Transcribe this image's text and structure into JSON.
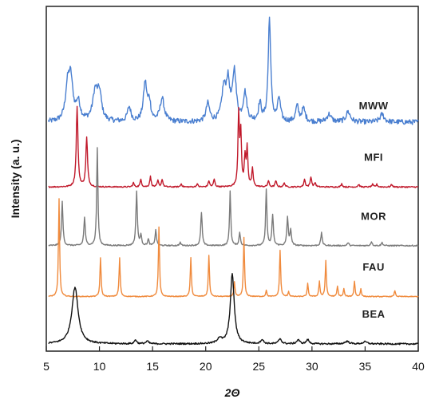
{
  "chart_data": {
    "type": "line",
    "xlabel": "2Θ",
    "ylabel": "Intensity (a. u.)",
    "xlim": [
      5,
      40
    ],
    "x_ticks": [
      "5",
      "10",
      "15",
      "20",
      "25",
      "30",
      "35",
      "40"
    ],
    "y_ticks": [],
    "grid": false,
    "legend": "none (series labelled at right end of each trace)",
    "series": [
      {
        "name": "MWW",
        "color": "#4a7fd0",
        "offset": 4.05,
        "baseline": 0.3,
        "noise": 0.05,
        "peaks": [
          [
            7.0,
            0.6,
            0.3
          ],
          [
            7.3,
            0.75,
            0.3
          ],
          [
            8.0,
            0.35,
            0.3
          ],
          [
            9.6,
            0.55,
            0.35
          ],
          [
            10.0,
            0.5,
            0.3
          ],
          [
            12.8,
            0.28,
            0.25
          ],
          [
            14.3,
            0.75,
            0.25
          ],
          [
            14.7,
            0.35,
            0.2
          ],
          [
            15.9,
            0.45,
            0.3
          ],
          [
            20.2,
            0.35,
            0.25
          ],
          [
            21.7,
            0.6,
            0.3
          ],
          [
            22.1,
            0.7,
            0.25
          ],
          [
            22.7,
            0.95,
            0.25
          ],
          [
            23.7,
            0.55,
            0.25
          ],
          [
            25.1,
            0.35,
            0.2
          ],
          [
            26.0,
            2.0,
            0.18
          ],
          [
            26.9,
            0.45,
            0.2
          ],
          [
            28.6,
            0.3,
            0.2
          ],
          [
            29.2,
            0.25,
            0.25
          ],
          [
            31.6,
            0.15,
            0.3
          ],
          [
            33.4,
            0.2,
            0.3
          ],
          [
            36.6,
            0.15,
            0.3
          ]
        ]
      },
      {
        "name": "MFI",
        "color": "#c0182a",
        "offset": 3.05,
        "baseline": 0.04,
        "noise": 0.012,
        "peaks": [
          [
            7.9,
            1.55,
            0.12
          ],
          [
            8.8,
            0.95,
            0.12
          ],
          [
            13.2,
            0.08,
            0.1
          ],
          [
            13.9,
            0.15,
            0.1
          ],
          [
            14.8,
            0.2,
            0.1
          ],
          [
            15.5,
            0.12,
            0.1
          ],
          [
            15.9,
            0.15,
            0.1
          ],
          [
            17.7,
            0.06,
            0.1
          ],
          [
            19.2,
            0.06,
            0.1
          ],
          [
            20.3,
            0.12,
            0.1
          ],
          [
            20.8,
            0.15,
            0.1
          ],
          [
            23.1,
            1.4,
            0.1
          ],
          [
            23.3,
            1.0,
            0.1
          ],
          [
            23.7,
            0.55,
            0.1
          ],
          [
            23.9,
            0.75,
            0.1
          ],
          [
            24.4,
            0.35,
            0.1
          ],
          [
            25.9,
            0.12,
            0.1
          ],
          [
            26.6,
            0.12,
            0.1
          ],
          [
            27.4,
            0.08,
            0.1
          ],
          [
            29.3,
            0.15,
            0.1
          ],
          [
            29.9,
            0.2,
            0.1
          ],
          [
            30.3,
            0.08,
            0.1
          ],
          [
            32.8,
            0.06,
            0.1
          ],
          [
            34.4,
            0.05,
            0.1
          ],
          [
            35.7,
            0.05,
            0.1
          ],
          [
            36.1,
            0.05,
            0.1
          ],
          [
            37.5,
            0.05,
            0.1
          ]
        ]
      },
      {
        "name": "MOR",
        "color": "#7a7a7a",
        "offset": 1.9,
        "baseline": 0.05,
        "noise": 0.012,
        "peaks": [
          [
            6.5,
            0.85,
            0.1
          ],
          [
            8.6,
            0.55,
            0.1
          ],
          [
            9.8,
            1.9,
            0.09
          ],
          [
            13.5,
            1.05,
            0.1
          ],
          [
            13.9,
            0.2,
            0.1
          ],
          [
            14.6,
            0.12,
            0.1
          ],
          [
            15.3,
            0.3,
            0.1
          ],
          [
            17.6,
            0.06,
            0.1
          ],
          [
            19.6,
            0.65,
            0.1
          ],
          [
            22.3,
            1.05,
            0.09
          ],
          [
            23.2,
            0.25,
            0.1
          ],
          [
            25.7,
            1.1,
            0.09
          ],
          [
            26.3,
            0.6,
            0.1
          ],
          [
            27.7,
            0.55,
            0.1
          ],
          [
            28.0,
            0.3,
            0.1
          ],
          [
            30.9,
            0.25,
            0.1
          ],
          [
            33.4,
            0.06,
            0.1
          ],
          [
            35.6,
            0.08,
            0.1
          ],
          [
            36.6,
            0.06,
            0.1
          ]
        ]
      },
      {
        "name": "FAU",
        "color": "#f08a3c",
        "offset": 0.92,
        "baseline": 0.04,
        "noise": 0.008,
        "peaks": [
          [
            6.2,
            1.9,
            0.08
          ],
          [
            10.1,
            0.75,
            0.08
          ],
          [
            11.9,
            0.75,
            0.08
          ],
          [
            15.6,
            1.35,
            0.08
          ],
          [
            18.6,
            0.75,
            0.08
          ],
          [
            20.3,
            0.8,
            0.08
          ],
          [
            22.7,
            0.28,
            0.08
          ],
          [
            23.6,
            1.15,
            0.08
          ],
          [
            25.7,
            0.12,
            0.08
          ],
          [
            27.0,
            0.9,
            0.08
          ],
          [
            27.8,
            0.1,
            0.08
          ],
          [
            29.6,
            0.25,
            0.08
          ],
          [
            30.7,
            0.3,
            0.08
          ],
          [
            31.3,
            0.7,
            0.08
          ],
          [
            32.4,
            0.2,
            0.08
          ],
          [
            33.0,
            0.15,
            0.08
          ],
          [
            34.0,
            0.3,
            0.08
          ],
          [
            34.6,
            0.15,
            0.08
          ],
          [
            37.8,
            0.12,
            0.08
          ]
        ]
      },
      {
        "name": "BEA",
        "color": "#111111",
        "offset": 0.0,
        "baseline": 0.04,
        "noise": 0.015,
        "peaks": [
          [
            7.7,
            1.1,
            0.45
          ],
          [
            13.4,
            0.08,
            0.15
          ],
          [
            14.5,
            0.05,
            0.2
          ],
          [
            21.3,
            0.1,
            0.3
          ],
          [
            22.5,
            1.35,
            0.28
          ],
          [
            25.3,
            0.08,
            0.2
          ],
          [
            27.0,
            0.1,
            0.2
          ],
          [
            28.7,
            0.08,
            0.2
          ],
          [
            29.6,
            0.08,
            0.2
          ],
          [
            33.3,
            0.05,
            0.3
          ],
          [
            35.0,
            0.04,
            0.3
          ]
        ]
      }
    ]
  }
}
